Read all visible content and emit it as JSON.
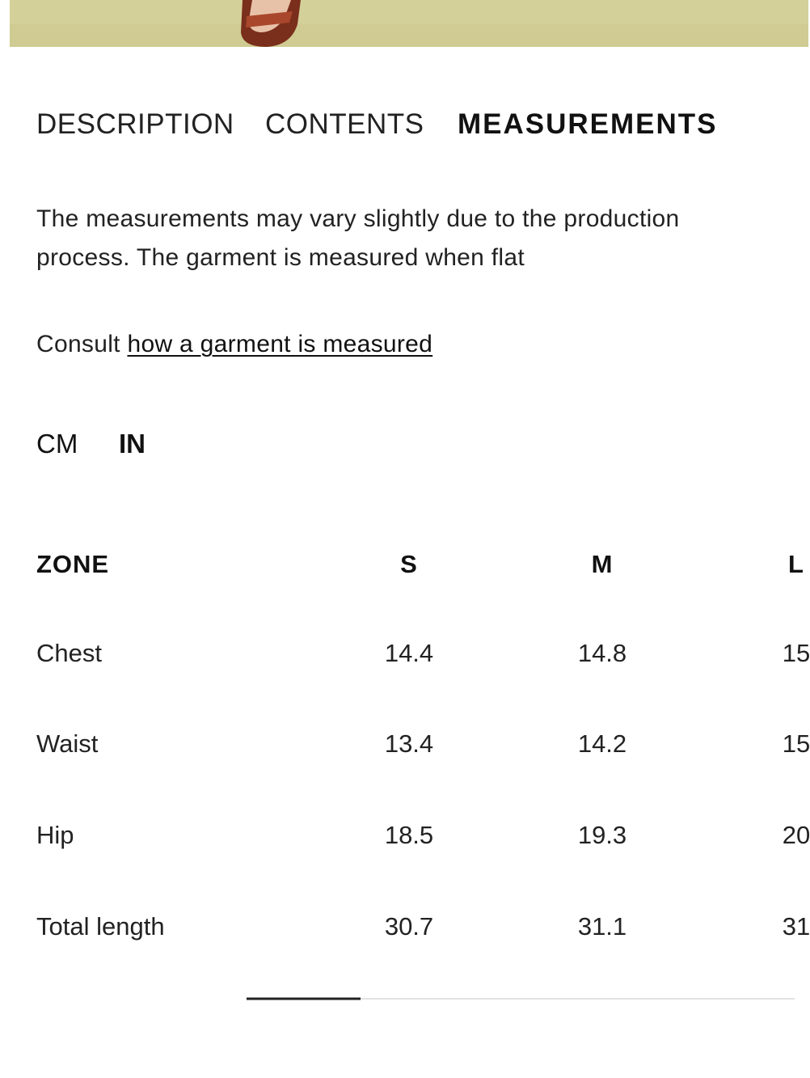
{
  "tabs": [
    "DESCRIPTION",
    "CONTENTS",
    "MEASUREMENTS"
  ],
  "description": {
    "line1": "The measurements may vary slightly due to the production",
    "line2": "process. The garment is measured when flat"
  },
  "consult": {
    "text": "Consult",
    "link": "how a garment is measured"
  },
  "units": [
    "CM",
    "IN"
  ],
  "table": {
    "header": [
      "ZONE",
      "S",
      "M",
      "L"
    ],
    "rows": [
      [
        "Chest",
        "14.4",
        "14.8",
        "15"
      ],
      [
        "Waist",
        "13.4",
        "14.2",
        "15"
      ],
      [
        "Hip",
        "18.5",
        "19.3",
        "20"
      ],
      [
        "Total length",
        "30.7",
        "31.1",
        "31"
      ]
    ]
  }
}
